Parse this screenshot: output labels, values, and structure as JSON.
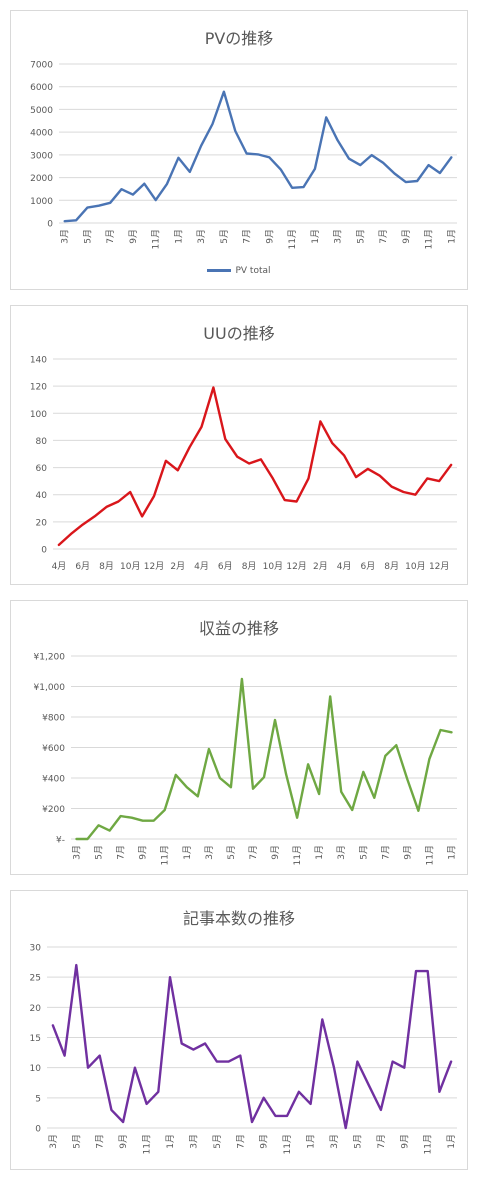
{
  "chart_data": [
    {
      "type": "line",
      "title": "PVの推移",
      "xlabel": "",
      "ylabel": "",
      "ylim": [
        0,
        7000
      ],
      "yticks": [
        "0",
        "1000",
        "2000",
        "3000",
        "4000",
        "5000",
        "6000",
        "7000"
      ],
      "yticks_values": [
        0,
        1000,
        2000,
        3000,
        4000,
        5000,
        6000,
        7000
      ],
      "grid": true,
      "legend": "bottom",
      "xtick_labels": [
        "3月",
        "5月",
        "7月",
        "9月",
        "11月",
        "1月",
        "3月",
        "5月",
        "7月",
        "9月",
        "11月",
        "1月",
        "3月",
        "5月",
        "7月",
        "9月",
        "11月",
        "1月"
      ],
      "series": [
        {
          "name": "PV total",
          "color": "#4a74b4",
          "values": [
            80,
            120,
            680,
            760,
            890,
            1490,
            1250,
            1730,
            1010,
            1720,
            2870,
            2250,
            3400,
            4360,
            5780,
            4050,
            3060,
            3020,
            2890,
            2360,
            1550,
            1580,
            2380,
            4650,
            3640,
            2830,
            2550,
            2990,
            2650,
            2180,
            1800,
            1850,
            2550,
            2200,
            2890
          ]
        }
      ]
    },
    {
      "type": "line",
      "title": "UUの推移",
      "xlabel": "",
      "ylabel": "",
      "ylim": [
        0,
        140
      ],
      "yticks": [
        "0",
        "20",
        "40",
        "60",
        "80",
        "100",
        "120",
        "140"
      ],
      "yticks_values": [
        0,
        20,
        40,
        60,
        80,
        100,
        120,
        140
      ],
      "grid": true,
      "xtick_labels": [
        "4月",
        "6月",
        "8月",
        "10月",
        "12月",
        "2月",
        "4月",
        "6月",
        "8月",
        "10月",
        "12月",
        "2月",
        "4月",
        "6月",
        "8月",
        "10月",
        "12月"
      ],
      "series": [
        {
          "color": "#d9161b",
          "values": [
            3,
            11,
            18,
            24,
            31,
            35,
            42,
            24,
            39,
            65,
            58,
            75,
            90,
            119,
            81,
            68,
            63,
            66,
            52,
            36,
            35,
            52,
            94,
            78,
            69,
            53,
            59,
            54,
            46,
            42,
            40,
            52,
            50,
            62
          ]
        }
      ]
    },
    {
      "type": "line",
      "title": "収益の推移",
      "xlabel": "",
      "ylabel": "",
      "ylim": [
        0,
        1200
      ],
      "yticks": [
        "¥-",
        "¥200",
        "¥400",
        "¥600",
        "¥800",
        "¥1,000",
        "¥1,200"
      ],
      "yticks_values": [
        0,
        200,
        400,
        600,
        800,
        1000,
        1200
      ],
      "grid": true,
      "xtick_labels": [
        "3月",
        "5月",
        "7月",
        "9月",
        "11月",
        "1月",
        "3月",
        "5月",
        "7月",
        "9月",
        "11月",
        "1月",
        "3月",
        "5月",
        "7月",
        "9月",
        "11月",
        "1月"
      ],
      "series": [
        {
          "color": "#6fa843",
          "values": [
            0,
            0,
            90,
            55,
            150,
            140,
            120,
            120,
            190,
            420,
            340,
            280,
            590,
            400,
            340,
            1050,
            330,
            405,
            780,
            425,
            140,
            490,
            295,
            935,
            310,
            190,
            440,
            270,
            545,
            615,
            390,
            185,
            525,
            715,
            700
          ]
        }
      ]
    },
    {
      "type": "line",
      "title": "記事本数の推移",
      "xlabel": "",
      "ylabel": "",
      "ylim": [
        0,
        30
      ],
      "yticks": [
        "0",
        "5",
        "10",
        "15",
        "20",
        "25",
        "30"
      ],
      "yticks_values": [
        0,
        5,
        10,
        15,
        20,
        25,
        30
      ],
      "grid": true,
      "xtick_labels": [
        "3月",
        "5月",
        "7月",
        "9月",
        "11月",
        "1月",
        "3月",
        "5月",
        "7月",
        "9月",
        "11月",
        "1月",
        "3月",
        "5月",
        "7月",
        "9月",
        "11月",
        "1月"
      ],
      "series": [
        {
          "color": "#7030a0",
          "values": [
            17,
            12,
            27,
            10,
            12,
            3,
            1,
            10,
            4,
            6,
            25,
            14,
            13,
            14,
            11,
            11,
            12,
            1,
            5,
            2,
            2,
            6,
            4,
            18,
            10,
            0,
            11,
            7,
            3,
            11,
            10,
            26,
            26,
            6,
            11
          ]
        }
      ]
    }
  ]
}
